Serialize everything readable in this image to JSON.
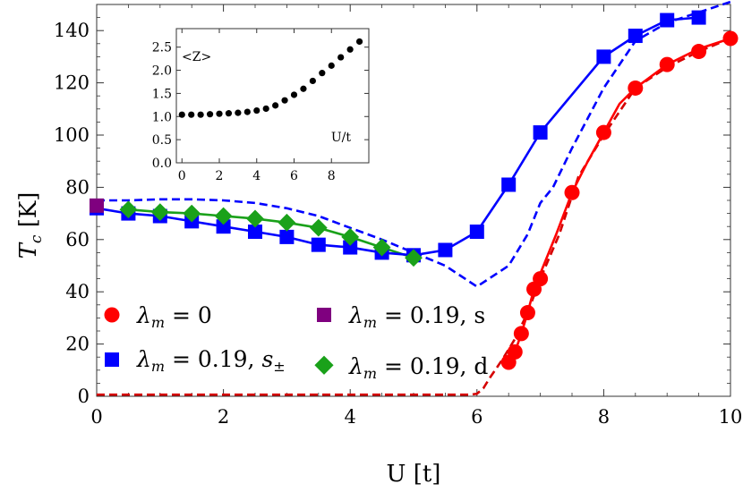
{
  "chart_data": {
    "type": "line",
    "xlabel": "U [t]",
    "ylabel": "T_c [K]",
    "xlim": [
      0,
      10
    ],
    "ylim": [
      0,
      150
    ],
    "xticks": [
      0,
      2,
      4,
      6,
      8,
      10
    ],
    "yticks": [
      0,
      20,
      40,
      60,
      80,
      100,
      120,
      140
    ],
    "grid": false,
    "legend_position": "lower-left",
    "series": [
      {
        "name": "λ_m = 0",
        "color": "#ff0000",
        "marker": "circle",
        "x": [
          6.5,
          6.6,
          6.7,
          6.8,
          6.9,
          7.0,
          7.5,
          8.0,
          8.5,
          9.0,
          9.5,
          10.0
        ],
        "y": [
          13,
          17,
          24,
          32,
          41,
          45,
          78,
          101,
          118,
          127,
          132,
          137
        ],
        "line_x": [
          6.5,
          6.6,
          6.7,
          6.8,
          6.9,
          7.0,
          7.25,
          7.5,
          7.75,
          8.0,
          8.25,
          8.5,
          9.0,
          9.5,
          10.0
        ],
        "line_y": [
          13,
          17,
          24,
          32,
          41,
          47,
          62,
          78,
          90,
          101,
          112,
          118,
          127,
          133,
          137
        ],
        "dashed_x": [
          0,
          5.9,
          6.0,
          6.1,
          6.2,
          6.4,
          6.6,
          6.8,
          7.0,
          7.3,
          7.6,
          8.0,
          8.5,
          9.0,
          9.5,
          10.0
        ],
        "dashed_y": [
          0.6,
          0.6,
          1,
          3,
          7,
          14,
          22,
          32,
          45,
          62,
          84,
          100,
          118,
          126,
          132,
          137
        ]
      },
      {
        "name": "λ_m = 0.19, s±",
        "color": "#0000ff",
        "marker": "square",
        "x": [
          0,
          0.5,
          1.0,
          1.5,
          2.0,
          2.5,
          3.0,
          3.5,
          4.0,
          4.5,
          5.0,
          5.5,
          6.0,
          6.5,
          7.0,
          8.0,
          8.5,
          9.0,
          9.5
        ],
        "y": [
          72,
          70,
          69,
          67,
          65,
          63,
          61,
          58,
          57,
          55,
          54,
          56,
          63,
          81,
          101,
          130,
          138,
          144,
          145
        ],
        "dashed_x": [
          0,
          0.5,
          1.0,
          1.5,
          2.0,
          2.5,
          3.0,
          3.5,
          4.0,
          4.5,
          5.0,
          5.5,
          6.0,
          6.5,
          6.8,
          7.0,
          7.2,
          7.5,
          8.0,
          8.5,
          9.0,
          9.5,
          10.0
        ],
        "dashed_y": [
          75,
          75,
          75.4,
          75.4,
          75,
          74,
          72,
          69,
          64.5,
          60,
          55,
          50,
          42,
          50,
          62,
          74,
          80,
          95,
          118,
          136,
          143,
          147,
          151
        ]
      },
      {
        "name": "λ_m = 0.19, s",
        "color": "#7f007f",
        "marker": "square",
        "x": [
          0
        ],
        "y": [
          73
        ]
      },
      {
        "name": "λ_m = 0.19, d",
        "color": "#1aa11a",
        "marker": "diamond",
        "x": [
          0.5,
          1.0,
          1.5,
          2.0,
          2.5,
          3.0,
          3.5,
          4.0,
          4.5,
          5.0
        ],
        "y": [
          71.5,
          70.5,
          70,
          69,
          68,
          66.5,
          64.5,
          61,
          57,
          53
        ]
      }
    ],
    "inset": {
      "type": "scatter",
      "ylabel": "<Z>",
      "xlabel": "U/t",
      "xlim": [
        -0.3,
        10
      ],
      "ylim": [
        0,
        2.9
      ],
      "xticks": [
        0,
        2,
        4,
        6,
        8
      ],
      "yticks": [
        0.0,
        0.5,
        1.0,
        1.5,
        2.0,
        2.5
      ],
      "xtick_labels": [
        "0",
        "2",
        "4",
        "6",
        "8"
      ],
      "ytick_labels": [
        "0.0",
        "0.5",
        "1.0",
        "1.5",
        "2.0",
        "2.5"
      ],
      "color": "#000000",
      "x": [
        0,
        0.5,
        1.0,
        1.5,
        2.0,
        2.5,
        3.0,
        3.5,
        4.0,
        4.5,
        5.0,
        5.5,
        6.0,
        6.5,
        7.0,
        7.5,
        8.0,
        8.5,
        9.0,
        9.5
      ],
      "y": [
        1.04,
        1.04,
        1.04,
        1.05,
        1.06,
        1.07,
        1.08,
        1.1,
        1.13,
        1.17,
        1.24,
        1.35,
        1.47,
        1.6,
        1.77,
        1.94,
        2.1,
        2.28,
        2.45,
        2.62
      ]
    }
  },
  "legend": {
    "entries": [
      {
        "prefix": "λ",
        "sub": "m",
        "value": " = 0",
        "suffix": "",
        "suffix_sub": ""
      },
      {
        "prefix": "λ",
        "sub": "m",
        "value": " = 0.19, ",
        "suffix": "s",
        "suffix_sub": "±"
      },
      {
        "prefix": "λ",
        "sub": "m",
        "value": " = 0.19, s",
        "suffix": "",
        "suffix_sub": ""
      },
      {
        "prefix": "λ",
        "sub": "m",
        "value": " = 0.19, d",
        "suffix": "",
        "suffix_sub": ""
      }
    ]
  },
  "labels": {
    "y_main": "T",
    "y_sub": "c",
    "y_unit": " [K]",
    "x_main": "U [t]",
    "inset_y": "<Z>",
    "inset_x": "U/t"
  }
}
